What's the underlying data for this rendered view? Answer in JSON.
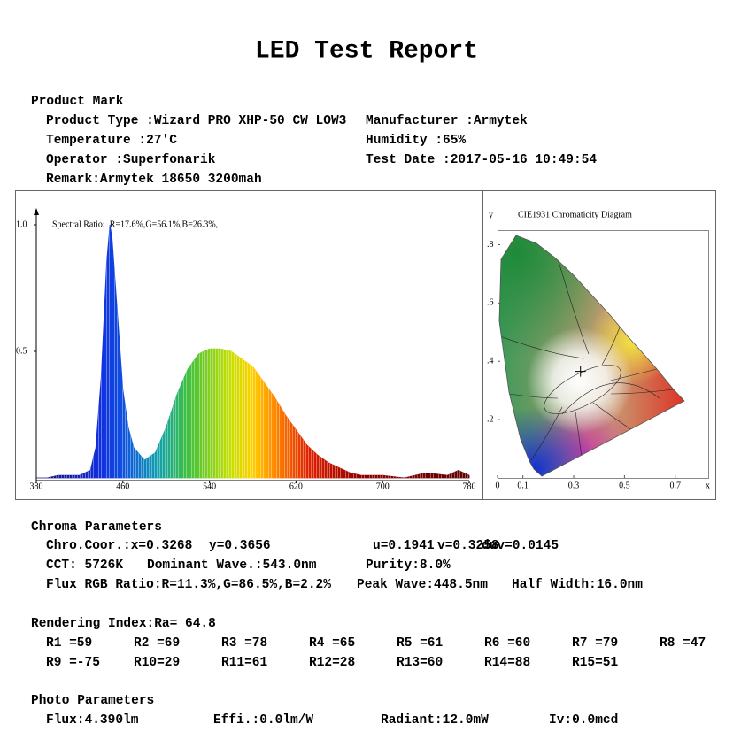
{
  "header": {
    "title": "LED Test Report"
  },
  "product": {
    "heading": "Product Mark",
    "fields": [
      "Product Type :Wizard PRO XHP-50 CW LOW3",
      "Manufacturer :Armytek",
      "Temperature :27'C",
      "Humidity :65%",
      "Operator :Superfonarik",
      "Test Date :2017-05-16 10:49:54",
      "Remark:Armytek 18650 3200mah"
    ]
  },
  "chart_data": [
    {
      "type": "area",
      "annotation": "Spectral Ratio:  R=17.6%,G=56.1%,B=26.3%,",
      "x": [
        380,
        390,
        400,
        410,
        420,
        430,
        435,
        440,
        445,
        448,
        450,
        455,
        460,
        465,
        470,
        480,
        490,
        500,
        510,
        520,
        530,
        540,
        550,
        560,
        570,
        580,
        590,
        600,
        610,
        620,
        630,
        640,
        650,
        660,
        670,
        680,
        700,
        720,
        740,
        760,
        770,
        780
      ],
      "values": [
        0,
        0,
        0.01,
        0.01,
        0.01,
        0.03,
        0.12,
        0.4,
        0.85,
        1.0,
        0.95,
        0.65,
        0.35,
        0.2,
        0.12,
        0.07,
        0.1,
        0.2,
        0.33,
        0.43,
        0.49,
        0.51,
        0.51,
        0.5,
        0.47,
        0.44,
        0.38,
        0.32,
        0.25,
        0.19,
        0.13,
        0.09,
        0.06,
        0.04,
        0.02,
        0.01,
        0.01,
        0,
        0.02,
        0.01,
        0.03,
        0.01
      ],
      "xlim": [
        380,
        780
      ],
      "ylim": [
        0,
        1
      ],
      "xticks": [
        380,
        460,
        540,
        620,
        700,
        780
      ],
      "yticks": [
        {
          "value": 1,
          "label": "1.0"
        },
        {
          "value": 0.5,
          "label": "0.5"
        }
      ]
    },
    {
      "type": "scatter",
      "title": "CIE1931 Chromaticity Diagram",
      "xlabel": "x",
      "ylabel": "y",
      "x": [
        0.3268
      ],
      "values": [
        0.3656
      ],
      "xlim": [
        0,
        0.83
      ],
      "ylim": [
        0,
        0.85
      ],
      "xticks": [
        0,
        0.1,
        0.3,
        0.5,
        0.7
      ],
      "yticks": [
        {
          "value": 0.8,
          "label": ".8"
        },
        {
          "value": 0.6,
          "label": ".6"
        },
        {
          "value": 0.4,
          "label": ".4"
        },
        {
          "value": 0.2,
          "label": ".2"
        }
      ]
    }
  ],
  "chroma": {
    "heading": "Chroma Parameters",
    "lines": [
      [
        "Chro.Coor.:x=0.3268",
        "y=0.3656",
        "u=0.1941",
        "v=0.3258",
        "duv=0.0145"
      ],
      [
        "CCT: 5726K",
        "Dominant Wave.:543.0nm",
        "Purity:8.0%"
      ],
      [
        "Flux RGB Ratio:R=11.3%,G=86.5%,B=2.2%",
        "Peak Wave:448.5nm",
        "Half Width:16.0nm"
      ]
    ]
  },
  "rendering": {
    "heading": "Rendering Index:Ra= 64.8",
    "items": [
      "R1 =59",
      "R2 =69",
      "R3 =78",
      "R4 =65",
      "R5 =61",
      "R6 =60",
      "R7 =79",
      "R8 =47",
      "R9 =-75",
      "R10=29",
      "R11=61",
      "R12=28",
      "R13=60",
      "R14=88",
      "R15=51"
    ]
  },
  "photo": {
    "heading": "Photo Parameters",
    "items": [
      "Flux:4.390lm",
      "Effi.:0.0lm/W",
      "Radiant:12.0mW",
      "Iv:0.0mcd"
    ]
  }
}
